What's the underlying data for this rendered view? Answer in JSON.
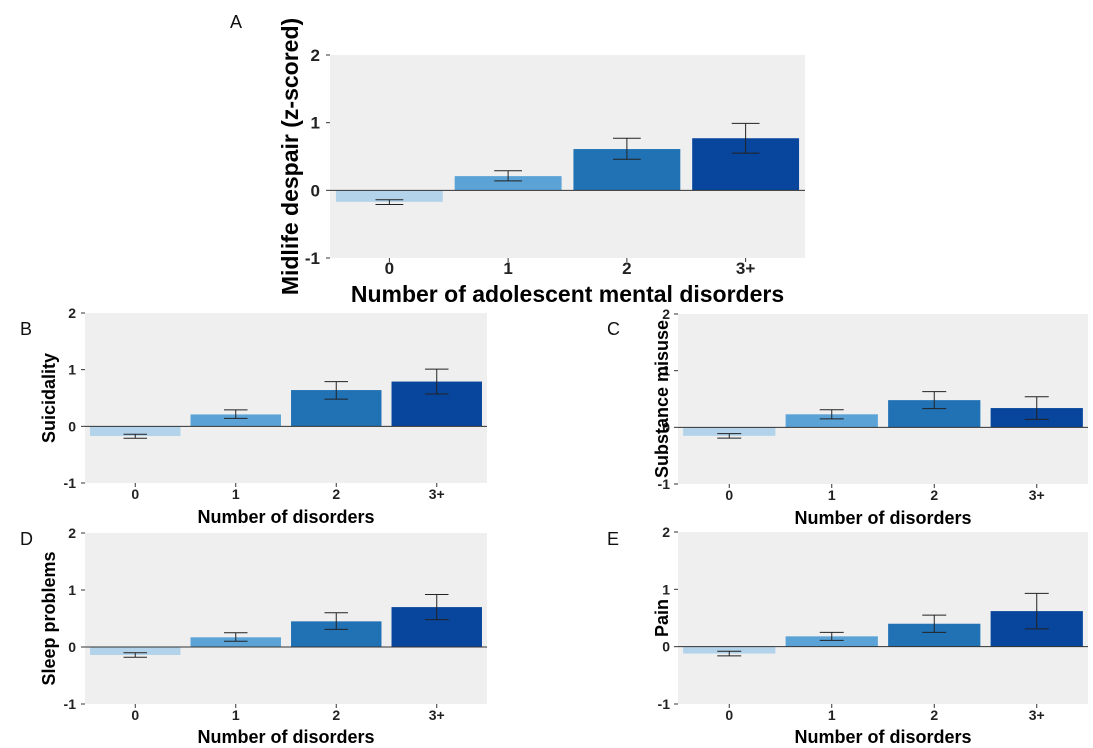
{
  "chart_data": [
    {
      "panel": "A",
      "type": "bar",
      "categories": [
        "0",
        "1",
        "2",
        "3+"
      ],
      "values": [
        -0.17,
        0.21,
        0.61,
        0.77
      ],
      "error_low": [
        -0.21,
        0.14,
        0.46,
        0.55
      ],
      "error_high": [
        -0.14,
        0.29,
        0.77,
        0.99
      ],
      "xlabel": "Number of adolescent mental disorders",
      "ylabel": "Midlife despair (z-scored)",
      "ylim": [
        -1,
        2
      ],
      "yticks": [
        "-1",
        "0",
        "1",
        "2"
      ],
      "colors": [
        "#b3d3ea",
        "#5ba3d6",
        "#2171b5",
        "#08459c"
      ],
      "grid": false,
      "background": "#efefef"
    },
    {
      "panel": "B",
      "type": "bar",
      "categories": [
        "0",
        "1",
        "2",
        "3+"
      ],
      "values": [
        -0.17,
        0.21,
        0.64,
        0.79
      ],
      "error_low": [
        -0.21,
        0.14,
        0.48,
        0.57
      ],
      "error_high": [
        -0.14,
        0.29,
        0.79,
        1.01
      ],
      "xlabel": "Number of disorders",
      "ylabel": "Suicidality",
      "ylim": [
        -1,
        2
      ],
      "yticks": [
        "-1",
        "0",
        "1",
        "2"
      ],
      "colors": [
        "#b3d3ea",
        "#5ba3d6",
        "#2171b5",
        "#08459c"
      ],
      "grid": false,
      "background": "#efefef"
    },
    {
      "panel": "C",
      "type": "bar",
      "categories": [
        "0",
        "1",
        "2",
        "3+"
      ],
      "values": [
        -0.15,
        0.23,
        0.48,
        0.34
      ],
      "error_low": [
        -0.19,
        0.15,
        0.33,
        0.14
      ],
      "error_high": [
        -0.11,
        0.31,
        0.63,
        0.54
      ],
      "xlabel": "Number of disorders",
      "ylabel": "Substance misuse",
      "ylim": [
        -1,
        2
      ],
      "yticks": [
        "-1",
        "0",
        "1",
        "2"
      ],
      "colors": [
        "#b3d3ea",
        "#5ba3d6",
        "#2171b5",
        "#08459c"
      ],
      "grid": false,
      "background": "#efefef"
    },
    {
      "panel": "D",
      "type": "bar",
      "categories": [
        "0",
        "1",
        "2",
        "3+"
      ],
      "values": [
        -0.14,
        0.17,
        0.45,
        0.7
      ],
      "error_low": [
        -0.18,
        0.1,
        0.31,
        0.48
      ],
      "error_high": [
        -0.1,
        0.25,
        0.6,
        0.92
      ],
      "xlabel": "Number of disorders",
      "ylabel": "Sleep problems",
      "ylim": [
        -1,
        2
      ],
      "yticks": [
        "-1",
        "0",
        "1",
        "2"
      ],
      "colors": [
        "#b3d3ea",
        "#5ba3d6",
        "#2171b5",
        "#08459c"
      ],
      "grid": false,
      "background": "#efefef"
    },
    {
      "panel": "E",
      "type": "bar",
      "categories": [
        "0",
        "1",
        "2",
        "3+"
      ],
      "values": [
        -0.12,
        0.18,
        0.4,
        0.62
      ],
      "error_low": [
        -0.16,
        0.11,
        0.25,
        0.31
      ],
      "error_high": [
        -0.08,
        0.25,
        0.55,
        0.93
      ],
      "xlabel": "Number of disorders",
      "ylabel": "Pain",
      "ylim": [
        -1,
        2
      ],
      "yticks": [
        "-1",
        "0",
        "1",
        "2"
      ],
      "colors": [
        "#b3d3ea",
        "#5ba3d6",
        "#2171b5",
        "#08459c"
      ],
      "grid": false,
      "background": "#efefef"
    }
  ]
}
